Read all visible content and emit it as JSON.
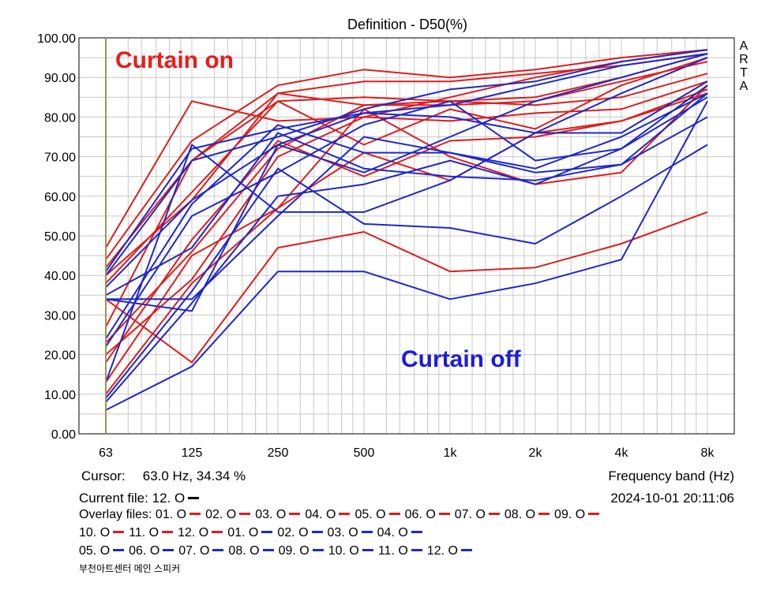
{
  "chart_data": {
    "type": "line",
    "title": "Definition - D50(%)",
    "xlabel": "Frequency band (Hz)",
    "ylabel": "",
    "categories": [
      "63",
      "125",
      "250",
      "500",
      "1k",
      "2k",
      "4k",
      "8k"
    ],
    "ylim": [
      0,
      100
    ],
    "y_ticks": [
      "0.00",
      "10.00",
      "20.00",
      "30.00",
      "40.00",
      "50.00",
      "60.00",
      "70.00",
      "80.00",
      "90.00",
      "100.00"
    ],
    "grid": true,
    "annotations": {
      "curtain_on": "Curtain on",
      "curtain_off": "Curtain off",
      "brand": "A R T A"
    },
    "series": [
      {
        "name": "01. O",
        "group": "red",
        "values": [
          47,
          84,
          79,
          80,
          85,
          90,
          94,
          97
        ]
      },
      {
        "name": "02. O",
        "group": "red",
        "values": [
          44,
          74,
          88,
          92,
          90,
          92,
          95,
          97
        ]
      },
      {
        "name": "03. O",
        "group": "red",
        "values": [
          42,
          69,
          86,
          89,
          89,
          91,
          93,
          96
        ]
      },
      {
        "name": "04. O",
        "group": "red",
        "values": [
          40,
          59,
          86,
          83,
          84,
          85,
          90,
          96
        ]
      },
      {
        "name": "05. O",
        "group": "red",
        "values": [
          38,
          61,
          84,
          73,
          82,
          77,
          88,
          95
        ]
      },
      {
        "name": "06. O",
        "group": "red",
        "values": [
          27,
          69,
          84,
          85,
          84,
          83,
          85,
          91
        ]
      },
      {
        "name": "07. O",
        "group": "red",
        "values": [
          23,
          46,
          72,
          83,
          83,
          84,
          89,
          94
        ]
      },
      {
        "name": "08. O",
        "group": "red",
        "values": [
          20,
          39,
          70,
          80,
          79,
          81,
          82,
          89
        ]
      },
      {
        "name": "09. O",
        "group": "red",
        "values": [
          18,
          49,
          74,
          65,
          74,
          75,
          79,
          87
        ]
      },
      {
        "name": "10. O",
        "group": "red",
        "values": [
          13,
          45,
          57,
          82,
          70,
          63,
          66,
          88
        ]
      },
      {
        "name": "11. O",
        "group": "red",
        "values": [
          10,
          38,
          57,
          71,
          64,
          76,
          79,
          86
        ]
      },
      {
        "name": "12. O",
        "group": "red",
        "values": [
          34,
          18,
          47,
          51,
          41,
          42,
          48,
          56
        ]
      },
      {
        "name": "01. O",
        "group": "blue",
        "values": [
          41,
          72,
          77,
          81,
          83,
          88,
          93,
          96
        ]
      },
      {
        "name": "02. O",
        "group": "blue",
        "values": [
          40,
          69,
          75,
          82,
          87,
          89,
          94,
          97
        ]
      },
      {
        "name": "03. O",
        "group": "blue",
        "values": [
          37,
          59,
          73,
          66,
          75,
          84,
          90,
          96
        ]
      },
      {
        "name": "04. O",
        "group": "blue",
        "values": [
          35,
          47,
          76,
          67,
          65,
          64,
          68,
          80
        ]
      },
      {
        "name": "05. O",
        "group": "blue",
        "values": [
          34,
          31,
          73,
          81,
          80,
          76,
          76,
          89
        ]
      },
      {
        "name": "06. O",
        "group": "blue",
        "values": [
          24,
          58,
          78,
          71,
          71,
          67,
          75,
          86
        ]
      },
      {
        "name": "07. O",
        "group": "blue",
        "values": [
          22,
          55,
          66,
          78,
          84,
          69,
          72,
          88
        ]
      },
      {
        "name": "08. O",
        "group": "blue",
        "values": [
          13,
          73,
          56,
          56,
          64,
          76,
          86,
          95
        ]
      },
      {
        "name": "09. O",
        "group": "blue",
        "values": [
          9,
          36,
          67,
          53,
          52,
          48,
          60,
          73
        ]
      },
      {
        "name": "10. O",
        "group": "blue",
        "values": [
          8,
          33,
          60,
          63,
          69,
          63,
          72,
          85
        ]
      },
      {
        "name": "11. O",
        "group": "blue",
        "values": [
          6,
          17,
          41,
          41,
          34,
          38,
          44,
          84
        ]
      },
      {
        "name": "12. O",
        "group": "blue",
        "values": [
          34,
          34,
          55,
          75,
          71,
          66,
          68,
          86
        ]
      }
    ]
  },
  "colors": {
    "red": "#dc1e1e",
    "blue": "#1e28c8",
    "grid": "#c8c8c8",
    "axis": "#000000",
    "cursor_line": "#a09550",
    "current_dash": "#000000",
    "curtain_on": "#e81c1c",
    "curtain_off": "#1c1cd8"
  },
  "info": {
    "cursor_label": "Cursor:",
    "cursor_value": "63.0 Hz, 34.34 %",
    "frequency_band": "Frequency band (Hz)",
    "current_file_label": "Current file:",
    "current_file_name": "12. O",
    "datetime": "2024-10-01   20:11:06",
    "overlay_label": "Overlay files:",
    "footer_title": "부천아트센터 메인 스피커"
  }
}
